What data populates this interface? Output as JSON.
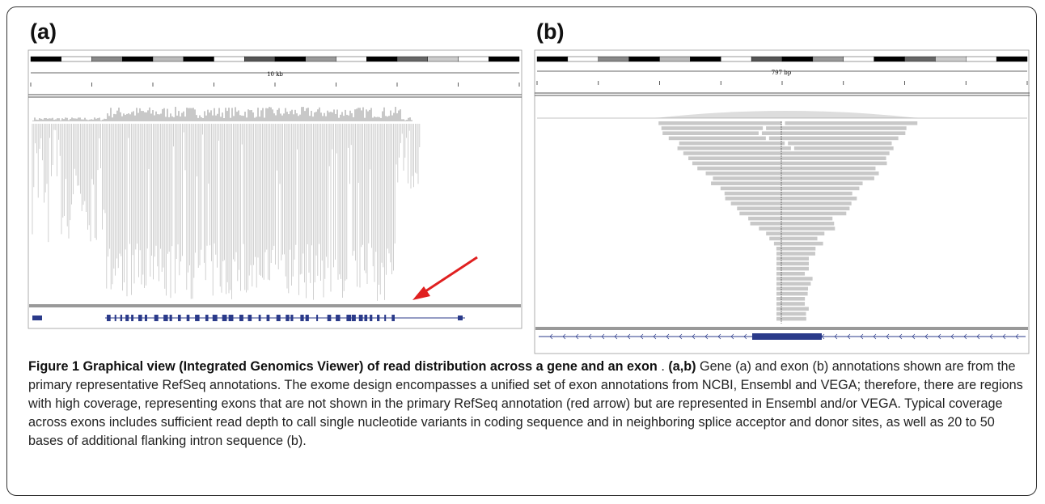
{
  "panels": {
    "a": {
      "label": "(a)",
      "scale": "10 kb"
    },
    "b": {
      "label": "(b)",
      "scale": "797 bp"
    }
  },
  "caption": {
    "label": "Figure 1",
    "title": "Graphical view (Integrated Genomics Viewer) of read distribution across a gene and an exon",
    "separator": ".",
    "panels": "(a,b)",
    "text": "Gene (a) and exon (b) annotations shown are from the primary representative RefSeq annotations. The exome design encompasses a unified set of exon annotations from NCBI, Ensembl and VEGA; therefore, there are regions with high coverage, representing exons that are not shown in the primary RefSeq annotation (red arrow) but are represented in Ensembl and/or VEGA. Typical coverage across exons includes sufficient read depth to call single nucleotide variants in coding sequence and in neighboring splice acceptor and donor sites, as well as 20 to 50 bases of additional flanking intron sequence (b)."
  }
}
